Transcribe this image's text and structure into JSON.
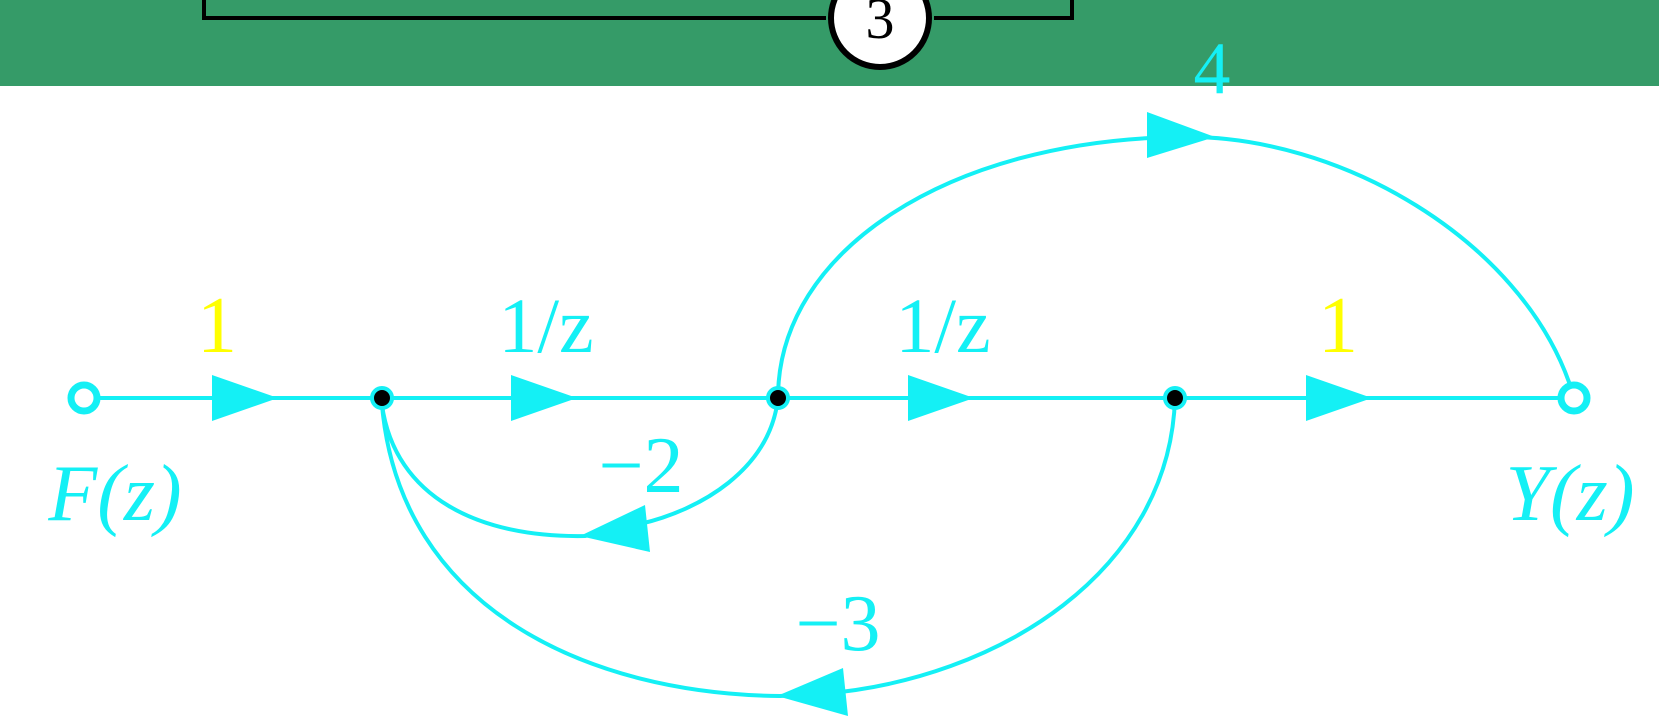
{
  "header": {
    "block_number": "3",
    "band_color": "#359b68"
  },
  "colors": {
    "flow": "#14f0f5",
    "gain_unity": "#ffff00",
    "node_fill": "#000000"
  },
  "nodes": {
    "input_label": "F(z)",
    "output_label": "Y(z)"
  },
  "gains": {
    "input_branch": "1",
    "delay_1": "1/z",
    "delay_2": "1/z",
    "output_branch": "1",
    "feedforward": "4",
    "feedback_inner": "−2",
    "feedback_outer": "−3"
  }
}
